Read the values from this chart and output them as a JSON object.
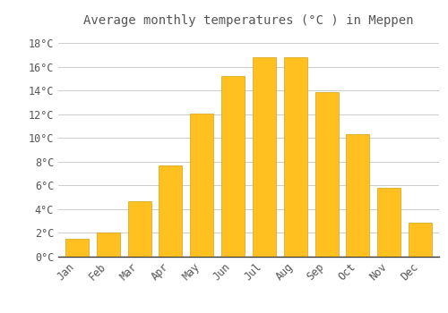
{
  "title": "Average monthly temperatures (°C ) in Meppen",
  "months": [
    "Jan",
    "Feb",
    "Mar",
    "Apr",
    "May",
    "Jun",
    "Jul",
    "Aug",
    "Sep",
    "Oct",
    "Nov",
    "Dec"
  ],
  "temperatures": [
    1.5,
    2.0,
    4.7,
    7.7,
    12.1,
    15.2,
    16.8,
    16.8,
    13.9,
    10.3,
    5.8,
    2.9
  ],
  "bar_color": "#FFC020",
  "bar_edge_color": "#D4A010",
  "background_color": "#FFFFFF",
  "grid_color": "#CCCCCC",
  "text_color": "#555555",
  "ylim": [
    0,
    19
  ],
  "yticks": [
    0,
    2,
    4,
    6,
    8,
    10,
    12,
    14,
    16,
    18
  ],
  "title_fontsize": 10,
  "tick_fontsize": 8.5,
  "font_family": "monospace"
}
